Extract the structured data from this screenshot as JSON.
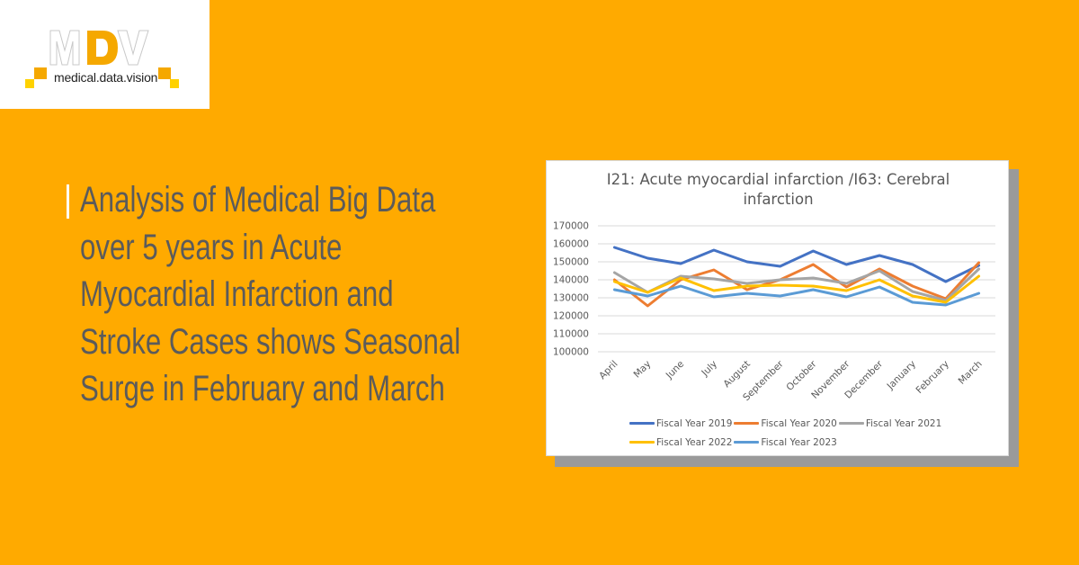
{
  "logo": {
    "letters": [
      "M",
      "D",
      "V"
    ],
    "tagline": "medical.data.vision",
    "accent_color": "#f5a800",
    "secondary_color": "#ffd200"
  },
  "headline": {
    "lines": [
      "Analysis of Medical Big Data",
      "over 5 years in Acute",
      "Myocardial Infarction and",
      "Stroke Cases shows Seasonal",
      "Surge in February and March"
    ],
    "color": "#5b5b5b"
  },
  "background_color": "#ffaa00",
  "chart_data": {
    "type": "line",
    "title": "I21: Acute myocardial infarction /I63: Cerebral infarction",
    "title_lines": [
      "I21: Acute myocardial infarction /I63: Cerebral",
      "infarction"
    ],
    "xlabel": "",
    "ylabel": "",
    "ylim": [
      100000,
      170000
    ],
    "yticks": [
      100000,
      110000,
      120000,
      130000,
      140000,
      150000,
      160000,
      170000
    ],
    "grid": true,
    "legend_position": "bottom",
    "categories": [
      "April",
      "May",
      "June",
      "July",
      "August",
      "September",
      "October",
      "November",
      "December",
      "January",
      "February",
      "March"
    ],
    "series": [
      {
        "name": "Fiscal Year 2019",
        "color": "#4472c4",
        "values": [
          158000,
          152000,
          149000,
          156500,
          150000,
          147500,
          156000,
          148500,
          153500,
          148500,
          139000,
          148000
        ]
      },
      {
        "name": "Fiscal Year 2020",
        "color": "#ed7d31",
        "values": [
          140000,
          125500,
          140000,
          145500,
          134500,
          140000,
          148500,
          136000,
          146000,
          136500,
          129500,
          149500
        ]
      },
      {
        "name": "Fiscal Year 2021",
        "color": "#a5a5a5",
        "values": [
          144000,
          133000,
          142000,
          140500,
          138000,
          140000,
          141000,
          138000,
          145000,
          133500,
          128500,
          146000
        ]
      },
      {
        "name": "Fiscal Year 2022",
        "color": "#ffc000",
        "values": [
          139000,
          133000,
          141000,
          134000,
          136500,
          137000,
          136500,
          134000,
          140000,
          131000,
          127500,
          142000
        ]
      },
      {
        "name": "Fiscal Year 2023",
        "color": "#5b9bd5",
        "values": [
          134500,
          131000,
          136500,
          130500,
          132500,
          131000,
          134500,
          130500,
          136000,
          127500,
          126000,
          132500
        ]
      }
    ]
  }
}
